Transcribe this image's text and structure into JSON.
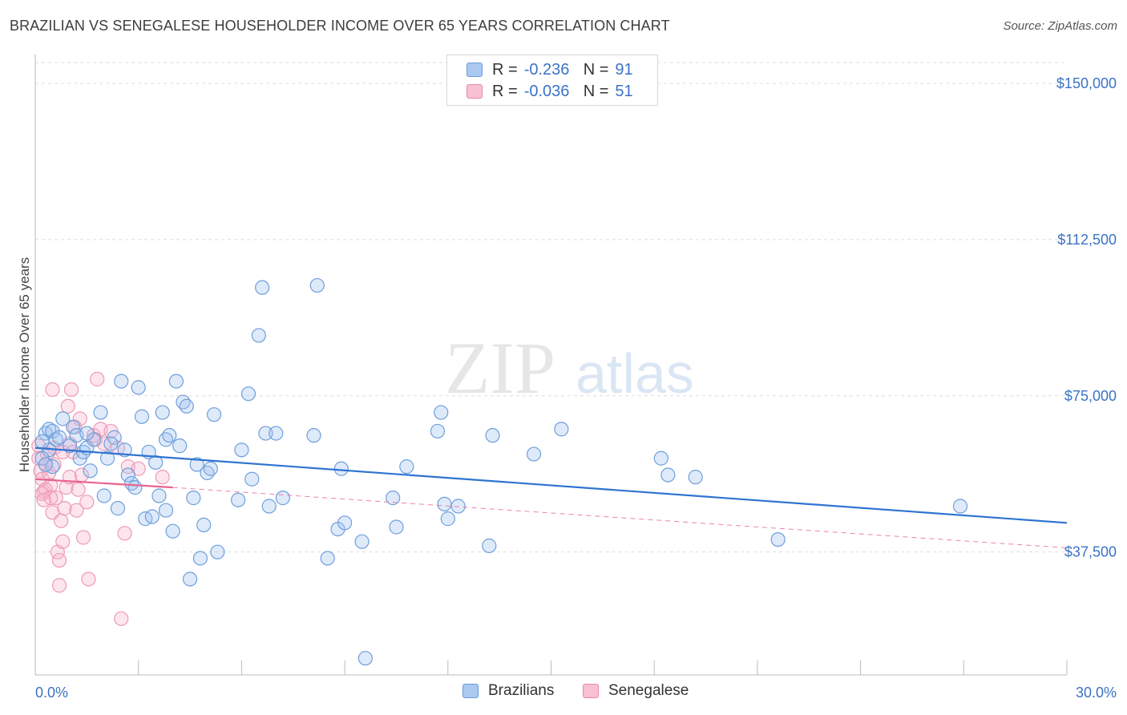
{
  "title": "BRAZILIAN VS SENEGALESE HOUSEHOLDER INCOME OVER 65 YEARS CORRELATION CHART",
  "source": "Source: ZipAtlas.com",
  "watermark": {
    "zip": "ZIP",
    "atlas": "atlas"
  },
  "legend": {
    "r_label": "R =",
    "n_label": "N =",
    "rows": [
      {
        "name": "Brazilians",
        "r": "-0.236",
        "n": "91",
        "fill": "#aac8f0",
        "stroke": "#6c9bd8"
      },
      {
        "name": "Senegalese",
        "r": "-0.036",
        "n": "51",
        "fill": "#f8c0d2",
        "stroke": "#e88aa8"
      }
    ]
  },
  "colors": {
    "blue_line": "#2f74d0",
    "pink_line": "#e8638f",
    "tick_text": "#3b73c4",
    "grid": "#dddddd"
  },
  "chart_data": {
    "type": "scatter",
    "title": "BRAZILIAN VS SENEGALESE HOUSEHOLDER INCOME OVER 65 YEARS CORRELATION CHART",
    "xlabel": "",
    "ylabel": "Householder Income Over 65 years",
    "xlim": [
      0,
      30
    ],
    "ylim": [
      8000,
      155000
    ],
    "y_ticks": [
      37500,
      75000,
      112500,
      150000
    ],
    "y_tick_labels": [
      "$37,500",
      "$75,000",
      "$112,500",
      "$150,000"
    ],
    "x_tick_labels": [
      "0.0%",
      "30.0%"
    ],
    "grid": true,
    "series": [
      {
        "name": "Brazilians",
        "trend": [
          [
            0,
            62500
          ],
          [
            30,
            44500
          ]
        ],
        "points": [
          [
            0.3,
            66000
          ],
          [
            0.4,
            67000
          ],
          [
            0.5,
            66500
          ],
          [
            0.6,
            64500
          ],
          [
            0.5,
            58000
          ],
          [
            0.4,
            62000
          ],
          [
            0.7,
            65000
          ],
          [
            0.8,
            69500
          ],
          [
            1.0,
            63000
          ],
          [
            1.1,
            67500
          ],
          [
            1.2,
            65500
          ],
          [
            1.3,
            60000
          ],
          [
            1.4,
            61500
          ],
          [
            1.5,
            62500
          ],
          [
            1.6,
            57000
          ],
          [
            1.7,
            64500
          ],
          [
            1.9,
            71000
          ],
          [
            2.0,
            51000
          ],
          [
            2.1,
            60000
          ],
          [
            2.3,
            65000
          ],
          [
            2.4,
            48000
          ],
          [
            2.5,
            78500
          ],
          [
            2.6,
            62000
          ],
          [
            2.7,
            56000
          ],
          [
            2.8,
            54000
          ],
          [
            2.9,
            53000
          ],
          [
            3.0,
            77000
          ],
          [
            3.1,
            70000
          ],
          [
            3.2,
            45500
          ],
          [
            3.3,
            61500
          ],
          [
            3.4,
            46000
          ],
          [
            3.5,
            59000
          ],
          [
            3.6,
            51000
          ],
          [
            3.7,
            71000
          ],
          [
            3.8,
            64500
          ],
          [
            3.8,
            47500
          ],
          [
            3.9,
            65500
          ],
          [
            4.0,
            42500
          ],
          [
            4.1,
            78500
          ],
          [
            4.2,
            63000
          ],
          [
            4.3,
            73500
          ],
          [
            4.4,
            72500
          ],
          [
            4.5,
            31000
          ],
          [
            4.6,
            50500
          ],
          [
            4.7,
            58500
          ],
          [
            4.8,
            36000
          ],
          [
            4.9,
            44000
          ],
          [
            5.0,
            56500
          ],
          [
            5.1,
            57500
          ],
          [
            5.2,
            70500
          ],
          [
            5.3,
            37500
          ],
          [
            5.9,
            50000
          ],
          [
            6.0,
            62000
          ],
          [
            6.2,
            75500
          ],
          [
            6.3,
            55000
          ],
          [
            6.5,
            89500
          ],
          [
            6.6,
            101000
          ],
          [
            6.7,
            66000
          ],
          [
            6.8,
            48500
          ],
          [
            7.0,
            66000
          ],
          [
            7.2,
            50500
          ],
          [
            8.1,
            65500
          ],
          [
            8.5,
            36000
          ],
          [
            8.8,
            43000
          ],
          [
            8.9,
            57500
          ],
          [
            8.2,
            101500
          ],
          [
            9.0,
            44500
          ],
          [
            9.5,
            40000
          ],
          [
            9.6,
            12000
          ],
          [
            10.4,
            50500
          ],
          [
            10.5,
            43500
          ],
          [
            10.8,
            58000
          ],
          [
            11.7,
            66500
          ],
          [
            11.8,
            71000
          ],
          [
            11.9,
            49000
          ],
          [
            12.0,
            45500
          ],
          [
            12.3,
            48500
          ],
          [
            13.2,
            39000
          ],
          [
            13.3,
            65500
          ],
          [
            14.5,
            61000
          ],
          [
            15.3,
            67000
          ],
          [
            18.2,
            60000
          ],
          [
            18.4,
            56000
          ],
          [
            19.2,
            55500
          ],
          [
            21.6,
            40500
          ],
          [
            26.9,
            48500
          ],
          [
            0.2,
            60000
          ],
          [
            0.3,
            58500
          ],
          [
            0.2,
            64000
          ],
          [
            1.5,
            66000
          ],
          [
            2.2,
            63500
          ]
        ]
      },
      {
        "name": "Senegalese",
        "trend": [
          [
            0,
            55000
          ],
          [
            4,
            53000
          ]
        ],
        "dashed_trend": [
          [
            4,
            53000
          ],
          [
            30,
            38500
          ]
        ],
        "points": [
          [
            0.1,
            60000
          ],
          [
            0.15,
            57000
          ],
          [
            0.2,
            55000
          ],
          [
            0.25,
            52000
          ],
          [
            0.3,
            58500
          ],
          [
            0.35,
            61000
          ],
          [
            0.4,
            56500
          ],
          [
            0.45,
            53500
          ],
          [
            0.5,
            47000
          ],
          [
            0.5,
            76500
          ],
          [
            0.55,
            62500
          ],
          [
            0.6,
            50500
          ],
          [
            0.65,
            37500
          ],
          [
            0.7,
            35500
          ],
          [
            0.7,
            29500
          ],
          [
            0.75,
            45000
          ],
          [
            0.8,
            40000
          ],
          [
            0.85,
            48000
          ],
          [
            0.9,
            53000
          ],
          [
            0.95,
            72500
          ],
          [
            1.0,
            63500
          ],
          [
            1.05,
            76500
          ],
          [
            1.1,
            61500
          ],
          [
            1.15,
            67500
          ],
          [
            1.2,
            47500
          ],
          [
            1.25,
            52500
          ],
          [
            1.3,
            69500
          ],
          [
            1.35,
            56000
          ],
          [
            1.4,
            41000
          ],
          [
            1.5,
            49500
          ],
          [
            1.55,
            31000
          ],
          [
            1.7,
            65500
          ],
          [
            1.75,
            64500
          ],
          [
            1.8,
            79000
          ],
          [
            1.9,
            67000
          ],
          [
            2.0,
            63500
          ],
          [
            2.2,
            66500
          ],
          [
            2.4,
            62500
          ],
          [
            2.5,
            21500
          ],
          [
            2.6,
            42000
          ],
          [
            2.7,
            58000
          ],
          [
            3.0,
            57500
          ],
          [
            3.7,
            55500
          ],
          [
            0.2,
            51500
          ],
          [
            0.3,
            52500
          ],
          [
            0.45,
            50500
          ],
          [
            0.55,
            58500
          ],
          [
            0.8,
            61500
          ],
          [
            1.0,
            55500
          ],
          [
            0.1,
            63000
          ],
          [
            0.25,
            50000
          ]
        ]
      }
    ]
  }
}
